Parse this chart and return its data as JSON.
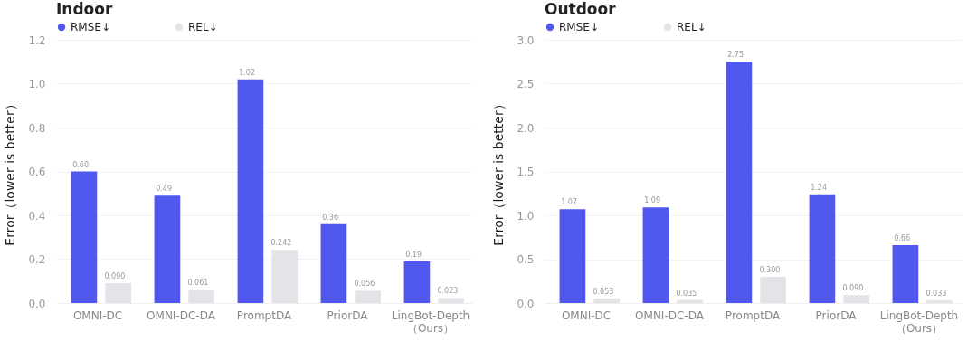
{
  "chart_data": [
    {
      "type": "bar",
      "title": "Indoor",
      "ylabel": "Error（lower is better）",
      "categories": [
        "OMNI-DC",
        "OMNI-DC-DA",
        "PromptDA",
        "PriorDA",
        "LingBot-Depth\n（Ours）"
      ],
      "ylim": [
        0,
        1.2
      ],
      "yticks": [
        {
          "value": 0,
          "label": "0.0"
        },
        0.2,
        0.4,
        0.6,
        0.8,
        {
          "value": 1,
          "label": "1.0"
        },
        1.2
      ],
      "grid": "y",
      "legend": "top left",
      "series": [
        {
          "name": "RMSE↓",
          "color": "#5058f0",
          "values": [
            0.6,
            0.49,
            1.02,
            0.36,
            0.19
          ],
          "value_labels": [
            "0.60",
            "0.49",
            "1.02",
            "0.36",
            "0.19"
          ]
        },
        {
          "name": "REL↓",
          "color": "#e4e4e8",
          "values": [
            0.09,
            0.061,
            0.242,
            0.056,
            0.023
          ],
          "value_labels": [
            "0.090",
            "0.061",
            "0.242",
            "0.056",
            "0.023"
          ]
        }
      ]
    },
    {
      "type": "bar",
      "title": "Outdoor",
      "ylabel": "Error（lower is better）",
      "categories": [
        "OMNI-DC",
        "OMNI-DC-DA",
        "PromptDA",
        "PriorDA",
        "LingBot-Depth\n（Ours）"
      ],
      "ylim": [
        0,
        3.0
      ],
      "yticks": [
        {
          "value": 0,
          "label": "0.0"
        },
        0.5,
        {
          "value": 1,
          "label": "1.0"
        },
        1.5,
        {
          "value": 2,
          "label": "2.0"
        },
        2.5,
        {
          "value": 3,
          "label": "3.0"
        }
      ],
      "grid": "y",
      "legend": "top left",
      "series": [
        {
          "name": "RMSE↓",
          "color": "#5058f0",
          "values": [
            1.07,
            1.09,
            2.75,
            1.24,
            0.66
          ],
          "value_labels": [
            "1.07",
            "1.09",
            "2.75",
            "1.24",
            "0.66"
          ]
        },
        {
          "name": "REL↓",
          "color": "#e4e4e8",
          "values": [
            0.053,
            0.035,
            0.3,
            0.09,
            0.033
          ],
          "value_labels": [
            "0.053",
            "0.035",
            "0.300",
            "0.090",
            "0.033"
          ]
        }
      ]
    }
  ]
}
